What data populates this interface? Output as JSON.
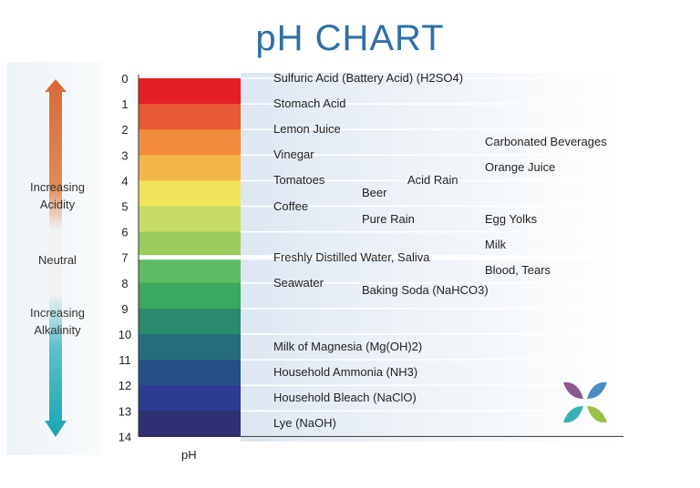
{
  "title": "pH CHART",
  "side_labels": {
    "acidity": [
      "Increasing",
      "Acidity"
    ],
    "neutral": "Neutral",
    "alkalinity": [
      "Increasing",
      "Alkalinity"
    ]
  },
  "chart_data": {
    "type": "table",
    "xlabel": "pH",
    "ylim": [
      0,
      14
    ],
    "ticks": [
      "0",
      "1",
      "2",
      "3",
      "4",
      "5",
      "6",
      "7",
      "8",
      "9",
      "10",
      "11",
      "12",
      "13",
      "14"
    ],
    "bands": [
      {
        "ph": 0,
        "color": "#e41f26"
      },
      {
        "ph": 1,
        "color": "#ea5a34"
      },
      {
        "ph": 2,
        "color": "#f08c3c"
      },
      {
        "ph": 3,
        "color": "#f5b44a"
      },
      {
        "ph": 4,
        "color": "#f0e55a"
      },
      {
        "ph": 5,
        "color": "#c6dc64"
      },
      {
        "ph": 6,
        "color": "#9acb5c"
      },
      {
        "ph": 7,
        "color": "#5dbb63"
      },
      {
        "ph": 8,
        "color": "#3aa85f"
      },
      {
        "ph": 9,
        "color": "#2a8a6e"
      },
      {
        "ph": 10,
        "color": "#246e7c"
      },
      {
        "ph": 11,
        "color": "#254f87"
      },
      {
        "ph": 12,
        "color": "#2e3b92"
      },
      {
        "ph": 13,
        "color": "#2f2f73"
      }
    ],
    "substances": [
      {
        "name": "Sulfuric Acid (Battery Acid) (H2SO4)",
        "ph": 0,
        "column": 1
      },
      {
        "name": "Stomach Acid",
        "ph": 1,
        "column": 1
      },
      {
        "name": "Lemon Juice",
        "ph": 2,
        "column": 1
      },
      {
        "name": "Carbonated Beverages",
        "ph": 2.5,
        "column": 3
      },
      {
        "name": "Vinegar",
        "ph": 3,
        "column": 1
      },
      {
        "name": "Orange Juice",
        "ph": 3.5,
        "column": 3
      },
      {
        "name": "Tomatoes",
        "ph": 4,
        "column": 1
      },
      {
        "name": "Acid Rain",
        "ph": 4,
        "column": 2.5
      },
      {
        "name": "Beer",
        "ph": 4.5,
        "column": 2
      },
      {
        "name": "Coffee",
        "ph": 5,
        "column": 1
      },
      {
        "name": "Pure Rain",
        "ph": 5.5,
        "column": 2
      },
      {
        "name": "Egg Yolks",
        "ph": 5.5,
        "column": 3
      },
      {
        "name": "Milk",
        "ph": 6.5,
        "column": 3
      },
      {
        "name": "Freshly Distilled Water, Saliva",
        "ph": 7,
        "column": 1
      },
      {
        "name": "Blood, Tears",
        "ph": 7.5,
        "column": 3
      },
      {
        "name": "Seawater",
        "ph": 8,
        "column": 1
      },
      {
        "name": "Baking Soda (NaHCO3)",
        "ph": 8.3,
        "column": 2
      },
      {
        "name": "Milk of Magnesia (Mg(OH)2)",
        "ph": 10.5,
        "column": 1
      },
      {
        "name": "Household Ammonia (NH3)",
        "ph": 11.5,
        "column": 1
      },
      {
        "name": "Household Bleach (NaClO)",
        "ph": 12.5,
        "column": 1
      },
      {
        "name": "Lye (NaOH)",
        "ph": 13.5,
        "column": 1
      }
    ]
  }
}
